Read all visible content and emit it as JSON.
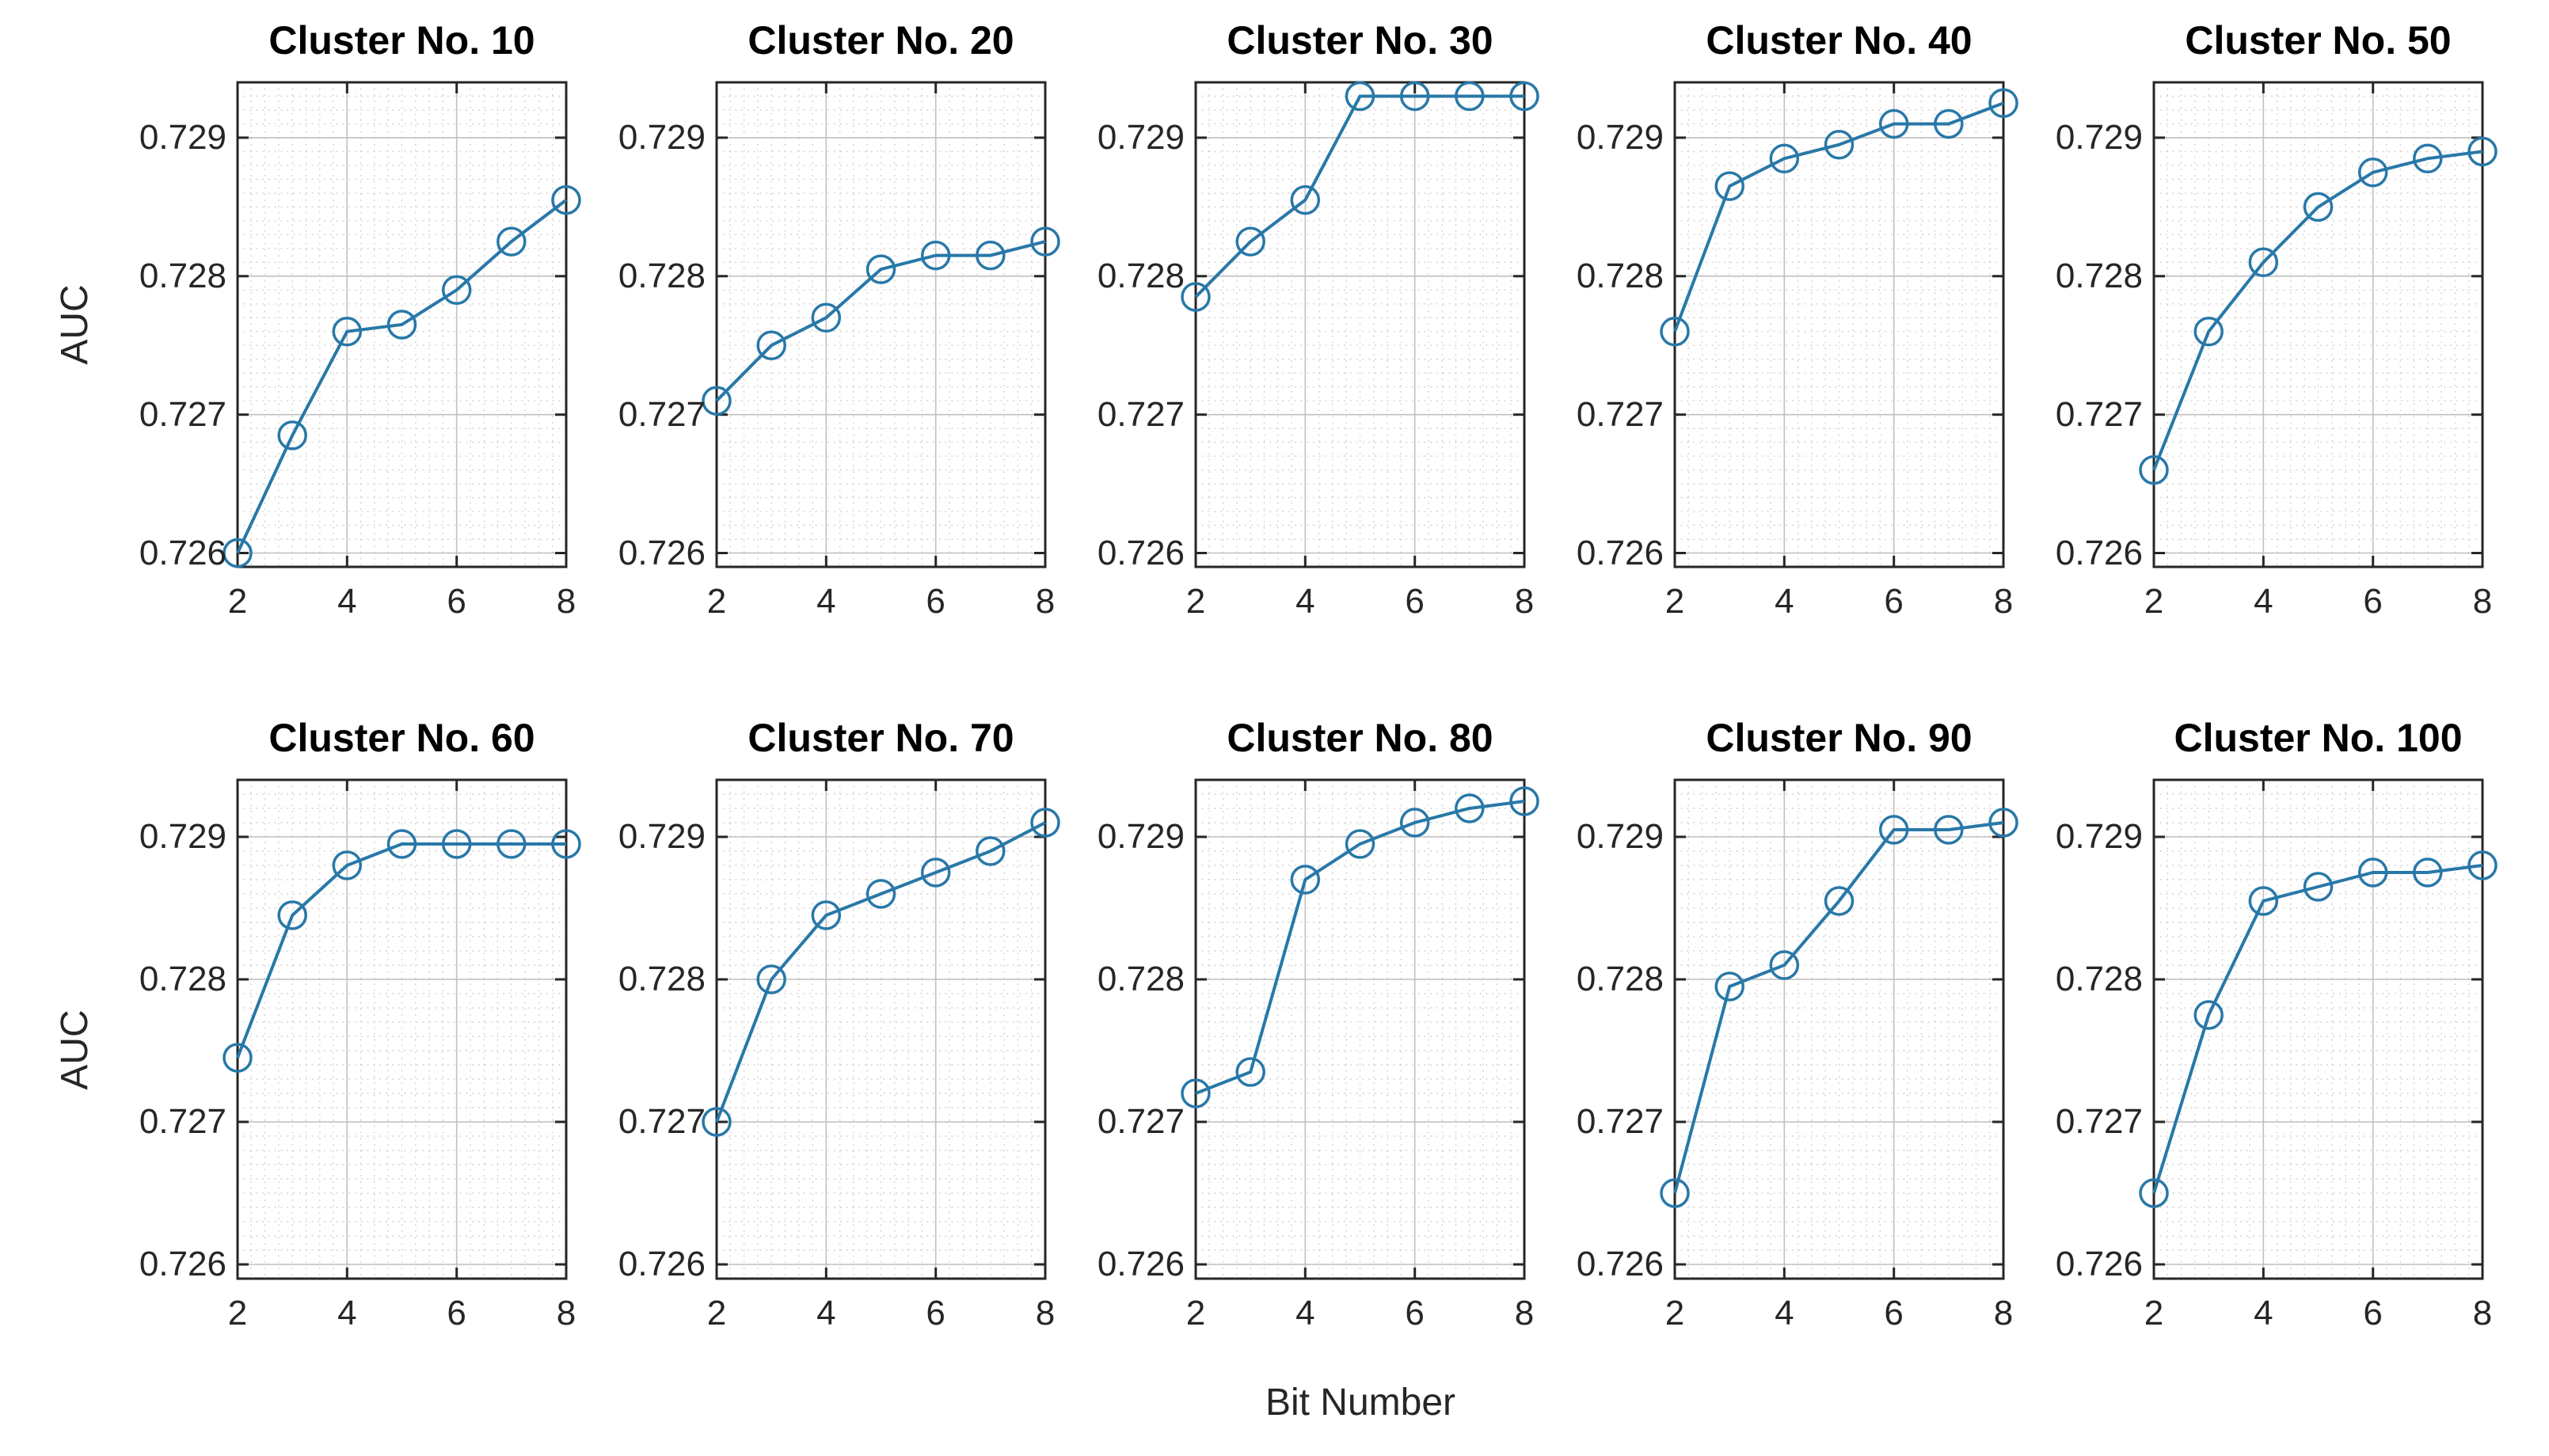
{
  "figure": {
    "ylabel": "AUC",
    "xlabel": "Bit Number",
    "x_tick_labels": [
      "2",
      "4",
      "6",
      "8"
    ],
    "x_tick_values": [
      2,
      4,
      6,
      8
    ],
    "y_tick_labels": [
      "0.726",
      "0.727",
      "0.728",
      "0.729"
    ],
    "y_tick_values": [
      0.726,
      0.727,
      0.728,
      0.729
    ],
    "xlim": [
      2,
      8
    ],
    "ylim": [
      0.7259,
      0.7294
    ],
    "x_minor_divisions": 24,
    "y_minor_divisions": 35,
    "grid": "on",
    "colors": {
      "line": "#2878A8",
      "axis": "#262626",
      "title": "#000000",
      "tick_label": "#262626",
      "grid_major": "#c0c0c0",
      "grid_minor": "#cacaca"
    }
  },
  "chart_data": [
    {
      "type": "line",
      "title": "Cluster No. 10",
      "x": [
        2,
        3,
        4,
        5,
        6,
        7,
        8
      ],
      "values": [
        0.726,
        0.72685,
        0.7276,
        0.72765,
        0.7279,
        0.72825,
        0.72855
      ]
    },
    {
      "type": "line",
      "title": "Cluster No. 20",
      "x": [
        2,
        3,
        4,
        5,
        6,
        7,
        8
      ],
      "values": [
        0.7271,
        0.7275,
        0.7277,
        0.72805,
        0.72815,
        0.72815,
        0.72825
      ]
    },
    {
      "type": "line",
      "title": "Cluster No. 30",
      "x": [
        2,
        3,
        4,
        5,
        6,
        7,
        8
      ],
      "values": [
        0.72785,
        0.72825,
        0.72855,
        0.7293,
        0.7293,
        0.7293,
        0.7293
      ]
    },
    {
      "type": "line",
      "title": "Cluster No. 40",
      "x": [
        2,
        3,
        4,
        5,
        6,
        7,
        8
      ],
      "values": [
        0.7276,
        0.72865,
        0.72885,
        0.72895,
        0.7291,
        0.7291,
        0.72925
      ]
    },
    {
      "type": "line",
      "title": "Cluster No. 50",
      "x": [
        2,
        3,
        4,
        5,
        6,
        7,
        8
      ],
      "values": [
        0.7266,
        0.7276,
        0.7281,
        0.7285,
        0.72875,
        0.72885,
        0.7289
      ]
    },
    {
      "type": "line",
      "title": "Cluster No. 60",
      "x": [
        2,
        3,
        4,
        5,
        6,
        7,
        8
      ],
      "values": [
        0.72745,
        0.72845,
        0.7288,
        0.72895,
        0.72895,
        0.72895,
        0.72895
      ]
    },
    {
      "type": "line",
      "title": "Cluster No. 70",
      "x": [
        2,
        3,
        4,
        5,
        6,
        7,
        8
      ],
      "values": [
        0.727,
        0.728,
        0.72845,
        0.7286,
        0.72875,
        0.7289,
        0.7291
      ]
    },
    {
      "type": "line",
      "title": "Cluster No. 80",
      "x": [
        2,
        3,
        4,
        5,
        6,
        7,
        8
      ],
      "values": [
        0.7272,
        0.72735,
        0.7287,
        0.72895,
        0.7291,
        0.7292,
        0.72925
      ]
    },
    {
      "type": "line",
      "title": "Cluster No. 90",
      "x": [
        2,
        3,
        4,
        5,
        6,
        7,
        8
      ],
      "values": [
        0.7265,
        0.72795,
        0.7281,
        0.72855,
        0.72905,
        0.72905,
        0.7291
      ]
    },
    {
      "type": "line",
      "title": "Cluster No. 100",
      "x": [
        2,
        3,
        4,
        5,
        6,
        7,
        8
      ],
      "values": [
        0.7265,
        0.72775,
        0.72855,
        0.72865,
        0.72875,
        0.72875,
        0.7288
      ]
    }
  ]
}
